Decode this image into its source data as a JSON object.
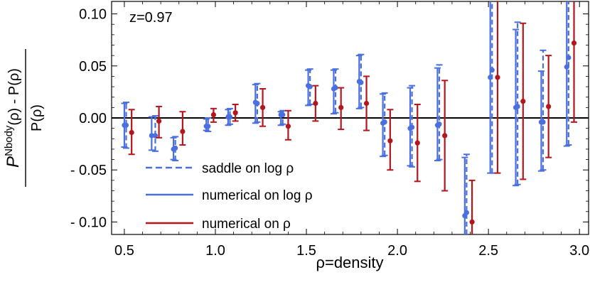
{
  "chart_data": {
    "type": "scatter",
    "title": "",
    "xlabel": "ρ=density",
    "ylabel": {
      "numerator_main": "P",
      "numerator_sup": "Nbody",
      "numerator_rest": "(ρ) - P(ρ)",
      "denominator": "P(ρ)"
    },
    "annotation": "z=0.97",
    "xlim": [
      0.43,
      3.05
    ],
    "ylim": [
      -0.112,
      0.112
    ],
    "x_ticks": [
      0.5,
      1.0,
      1.5,
      2.0,
      2.5,
      3.0
    ],
    "x_tick_labels": [
      "0.5",
      "1.0",
      "1.5",
      "2.0",
      "2.5",
      "3.0"
    ],
    "y_ticks": [
      0.1,
      0.05,
      0.0,
      -0.05,
      -0.1
    ],
    "y_tick_labels": [
      "0.10",
      "0.05",
      "0.00",
      "- 0.05",
      "- 0.10"
    ],
    "grid": false,
    "legend_position": "bottom-left",
    "colors": {
      "blue": "#4a6fdf",
      "red": "#b3161c",
      "axis": "#000000"
    },
    "series": [
      {
        "name": "saddle on log ρ",
        "color": "#4a6fdf",
        "dash": true,
        "points": [
          {
            "x": 0.51,
            "y": -0.007,
            "lo": -0.029,
            "hi": 0.015
          },
          {
            "x": 0.67,
            "y": -0.017,
            "lo": -0.032,
            "hi": 0.002
          },
          {
            "x": 0.78,
            "y": -0.029,
            "lo": -0.041,
            "hi": -0.018
          },
          {
            "x": 0.96,
            "y": -0.008,
            "lo": -0.013,
            "hi": 0.0
          },
          {
            "x": 1.08,
            "y": 0.001,
            "lo": -0.006,
            "hi": 0.009
          },
          {
            "x": 1.23,
            "y": 0.014,
            "lo": -0.004,
            "hi": 0.033
          },
          {
            "x": 1.37,
            "y": 0.003,
            "lo": -0.006,
            "hi": 0.007
          },
          {
            "x": 1.52,
            "y": 0.03,
            "lo": 0.013,
            "hi": 0.047
          },
          {
            "x": 1.66,
            "y": 0.029,
            "lo": 0.005,
            "hi": 0.047
          },
          {
            "x": 1.8,
            "y": 0.034,
            "lo": 0.01,
            "hi": 0.061
          },
          {
            "x": 1.93,
            "y": -0.004,
            "lo": -0.036,
            "hi": 0.024
          },
          {
            "x": 2.08,
            "y": -0.009,
            "lo": -0.047,
            "hi": 0.031
          },
          {
            "x": 2.23,
            "y": -0.006,
            "lo": -0.04,
            "hi": 0.051
          },
          {
            "x": 2.38,
            "y": -0.091,
            "lo": -0.125,
            "hi": -0.035
          },
          {
            "x": 2.52,
            "y": 0.046,
            "lo": -0.053,
            "hi": 0.125
          },
          {
            "x": 2.66,
            "y": 0.011,
            "lo": -0.064,
            "hi": 0.092
          },
          {
            "x": 2.8,
            "y": -0.004,
            "lo": -0.05,
            "hi": 0.065
          },
          {
            "x": 2.94,
            "y": 0.058,
            "lo": -0.026,
            "hi": 0.125
          }
        ]
      },
      {
        "name": "numerical on log ρ",
        "color": "#4a6fdf",
        "dash": false,
        "points": [
          {
            "x": 0.5,
            "y": -0.007,
            "lo": -0.028,
            "hi": 0.014
          },
          {
            "x": 0.65,
            "y": -0.017,
            "lo": -0.031,
            "hi": 0.001
          },
          {
            "x": 0.77,
            "y": -0.03,
            "lo": -0.04,
            "hi": -0.019
          },
          {
            "x": 0.95,
            "y": -0.008,
            "lo": -0.012,
            "hi": -0.001
          },
          {
            "x": 1.07,
            "y": 0.001,
            "lo": -0.007,
            "hi": 0.008
          },
          {
            "x": 1.22,
            "y": 0.015,
            "lo": -0.005,
            "hi": 0.032
          },
          {
            "x": 1.36,
            "y": 0.003,
            "lo": -0.007,
            "hi": 0.006
          },
          {
            "x": 1.51,
            "y": 0.031,
            "lo": 0.012,
            "hi": 0.046
          },
          {
            "x": 1.65,
            "y": 0.028,
            "lo": 0.004,
            "hi": 0.046
          },
          {
            "x": 1.79,
            "y": 0.035,
            "lo": 0.009,
            "hi": 0.06
          },
          {
            "x": 1.92,
            "y": -0.005,
            "lo": -0.037,
            "hi": 0.023
          },
          {
            "x": 2.07,
            "y": -0.01,
            "lo": -0.046,
            "hi": 0.029
          },
          {
            "x": 2.22,
            "y": -0.007,
            "lo": -0.041,
            "hi": 0.048
          },
          {
            "x": 2.37,
            "y": -0.094,
            "lo": -0.125,
            "hi": -0.038
          },
          {
            "x": 2.51,
            "y": 0.039,
            "lo": -0.053,
            "hi": 0.125
          },
          {
            "x": 2.65,
            "y": 0.01,
            "lo": -0.065,
            "hi": 0.085
          },
          {
            "x": 2.79,
            "y": -0.004,
            "lo": -0.051,
            "hi": 0.045
          },
          {
            "x": 2.93,
            "y": 0.049,
            "lo": -0.027,
            "hi": 0.125
          }
        ]
      },
      {
        "name": "numerical on ρ",
        "color": "#b3161c",
        "dash": false,
        "points": [
          {
            "x": 0.54,
            "y": -0.014,
            "lo": -0.035,
            "hi": 0.008
          },
          {
            "x": 0.69,
            "y": -0.003,
            "lo": -0.019,
            "hi": 0.011
          },
          {
            "x": 0.82,
            "y": -0.013,
            "lo": -0.026,
            "hi": 0.006
          },
          {
            "x": 0.99,
            "y": 0.003,
            "lo": -0.004,
            "hi": 0.009
          },
          {
            "x": 1.11,
            "y": 0.005,
            "lo": -0.003,
            "hi": 0.013
          },
          {
            "x": 1.26,
            "y": 0.01,
            "lo": -0.008,
            "hi": 0.028
          },
          {
            "x": 1.4,
            "y": -0.008,
            "lo": -0.021,
            "hi": 0.007
          },
          {
            "x": 1.55,
            "y": 0.014,
            "lo": -0.003,
            "hi": 0.031
          },
          {
            "x": 1.69,
            "y": 0.01,
            "lo": -0.011,
            "hi": 0.029
          },
          {
            "x": 1.83,
            "y": 0.014,
            "lo": -0.012,
            "hi": 0.04
          },
          {
            "x": 1.96,
            "y": -0.022,
            "lo": -0.05,
            "hi": 0.008
          },
          {
            "x": 2.11,
            "y": -0.024,
            "lo": -0.061,
            "hi": 0.013
          },
          {
            "x": 2.26,
            "y": -0.017,
            "lo": -0.07,
            "hi": 0.036
          },
          {
            "x": 2.41,
            "y": -0.1,
            "lo": -0.125,
            "hi": -0.06
          },
          {
            "x": 2.55,
            "y": 0.039,
            "lo": -0.053,
            "hi": 0.125
          },
          {
            "x": 2.69,
            "y": 0.016,
            "lo": -0.059,
            "hi": 0.091
          },
          {
            "x": 2.83,
            "y": 0.011,
            "lo": -0.038,
            "hi": 0.06
          },
          {
            "x": 2.97,
            "y": 0.072,
            "lo": -0.004,
            "hi": 0.125
          }
        ]
      }
    ]
  }
}
